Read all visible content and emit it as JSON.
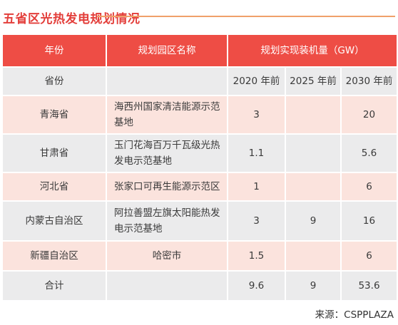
{
  "title": "五省区光热发电规划情况",
  "header": {
    "col_year": "年份",
    "col_park": "规划园区名称",
    "col_capacity": "规划实现装机量（GW）"
  },
  "subheader": {
    "province": "省份",
    "park": "",
    "y2020": "2020 年前",
    "y2025": "2025 年前",
    "y2030": "2030 年前"
  },
  "rows": [
    {
      "province": "青海省",
      "park": "海西州国家清洁能源示范基地",
      "y2020": "3",
      "y2025": "",
      "y2030": "20"
    },
    {
      "province": "甘肃省",
      "park": "玉门花海百万千瓦级光热发电示范基地",
      "y2020": "1.1",
      "y2025": "",
      "y2030": "5.6"
    },
    {
      "province": "河北省",
      "park": "张家口可再生能源示范区",
      "y2020": "1",
      "y2025": "",
      "y2030": "6"
    },
    {
      "province": "内蒙古自治区",
      "park": "阿拉善盟左旗太阳能热发电示范基地",
      "y2020": "3",
      "y2025": "9",
      "y2030": "16"
    },
    {
      "province": "新疆自治区",
      "park": "哈密市",
      "y2020": "1.5",
      "y2025": "",
      "y2030": "6"
    }
  ],
  "total": {
    "label": "合计",
    "park": "",
    "y2020": "9.6",
    "y2025": "9",
    "y2030": "53.6"
  },
  "source": "来源：CSPPLAZA",
  "colors": {
    "header_bg": "#ee4d45",
    "title": "#e33e3a",
    "pink_row": "#fbe3dd",
    "gray_row": "#ebebec"
  }
}
